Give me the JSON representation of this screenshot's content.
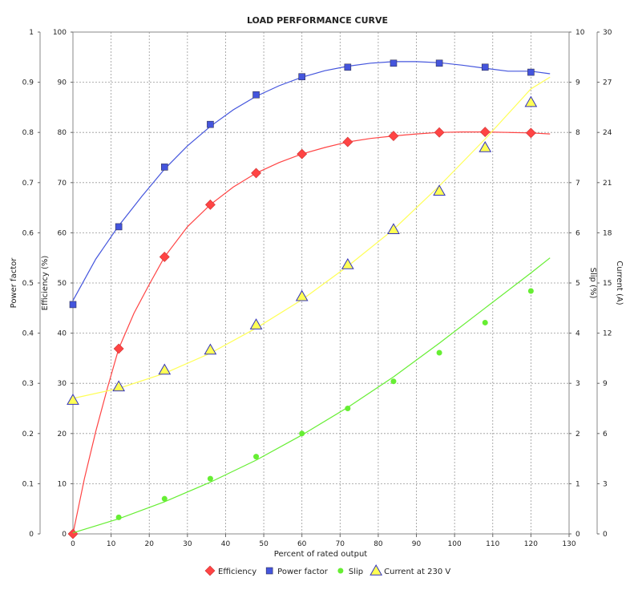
{
  "chart_data": {
    "type": "line",
    "title": "LOAD PERFORMANCE CURVE",
    "xlabel": "Percent of rated output",
    "x_ticks": [
      "0",
      "10",
      "20",
      "30",
      "40",
      "50",
      "60",
      "70",
      "80",
      "90",
      "100",
      "110",
      "120",
      "130"
    ],
    "xlim": [
      0,
      130
    ],
    "axes": [
      {
        "label": "Power factor",
        "position": "left-outer",
        "ylim": [
          0,
          1
        ],
        "ticks": [
          "0",
          "0.1",
          "0.2",
          "0.3",
          "0.4",
          "0.5",
          "0.6",
          "0.7",
          "0.8",
          "0.9",
          "1"
        ]
      },
      {
        "label": "Efficiency (%)",
        "position": "left-inner",
        "ylim": [
          0,
          100
        ],
        "ticks": [
          "0",
          "10",
          "20",
          "30",
          "40",
          "50",
          "60",
          "70",
          "80",
          "90",
          "100"
        ]
      },
      {
        "label": "Slip (%)",
        "position": "right-inner",
        "ylim": [
          0,
          10
        ],
        "ticks": [
          "0",
          "1",
          "2",
          "3",
          "4",
          "5",
          "6",
          "7",
          "8",
          "9",
          "10"
        ]
      },
      {
        "label": "Current (A)",
        "position": "right-outer",
        "ylim": [
          0,
          30
        ],
        "ticks": [
          "0",
          "3",
          "6",
          "9",
          "12",
          "15",
          "18",
          "21",
          "24",
          "27",
          "30"
        ]
      }
    ],
    "grid": true,
    "legend_position": "bottom",
    "series": [
      {
        "name": "Efficiency",
        "axis": "Efficiency (%)",
        "color": "#ff4444",
        "marker": "diamond",
        "x": [
          0,
          12,
          24,
          36,
          48,
          60,
          72,
          84,
          96,
          108,
          120
        ],
        "y": [
          0,
          36.9,
          55.2,
          65.6,
          71.9,
          75.7,
          78.1,
          79.3,
          80.0,
          80.1,
          79.9
        ],
        "curve": [
          [
            0,
            0
          ],
          [
            3,
            11
          ],
          [
            6,
            20.5
          ],
          [
            9,
            29
          ],
          [
            12,
            36.9
          ],
          [
            16,
            44
          ],
          [
            20,
            49.7
          ],
          [
            24,
            55.2
          ],
          [
            30,
            61.2
          ],
          [
            36,
            65.6
          ],
          [
            42,
            69.1
          ],
          [
            48,
            71.9
          ],
          [
            54,
            74
          ],
          [
            60,
            75.7
          ],
          [
            66,
            77
          ],
          [
            72,
            78.1
          ],
          [
            78,
            78.8
          ],
          [
            84,
            79.3
          ],
          [
            90,
            79.7
          ],
          [
            96,
            80.0
          ],
          [
            102,
            80.1
          ],
          [
            108,
            80.1
          ],
          [
            114,
            80.0
          ],
          [
            120,
            79.9
          ],
          [
            125,
            79.7
          ]
        ]
      },
      {
        "name": "Power factor",
        "axis": "Power factor",
        "color": "#4455dd",
        "marker": "square",
        "x": [
          0,
          12,
          24,
          36,
          48,
          60,
          72,
          84,
          96,
          108,
          120
        ],
        "y": [
          0.457,
          0.612,
          0.731,
          0.816,
          0.875,
          0.911,
          0.93,
          0.938,
          0.938,
          0.93,
          0.92
        ],
        "curve": [
          [
            0,
            0.465
          ],
          [
            6,
            0.548
          ],
          [
            12,
            0.614
          ],
          [
            18,
            0.672
          ],
          [
            24,
            0.727
          ],
          [
            30,
            0.773
          ],
          [
            36,
            0.812
          ],
          [
            42,
            0.845
          ],
          [
            48,
            0.872
          ],
          [
            54,
            0.893
          ],
          [
            60,
            0.91
          ],
          [
            66,
            0.923
          ],
          [
            72,
            0.932
          ],
          [
            78,
            0.938
          ],
          [
            84,
            0.941
          ],
          [
            90,
            0.941
          ],
          [
            96,
            0.939
          ],
          [
            102,
            0.934
          ],
          [
            108,
            0.928
          ],
          [
            114,
            0.922
          ],
          [
            120,
            0.922
          ],
          [
            125,
            0.917
          ]
        ]
      },
      {
        "name": "Slip",
        "axis": "Slip (%)",
        "color": "#66ee33",
        "marker": "circle",
        "x": [
          12,
          24,
          36,
          48,
          60,
          72,
          84,
          96,
          108,
          120
        ],
        "y": [
          0.33,
          0.7,
          1.1,
          1.54,
          2.0,
          2.5,
          3.04,
          3.61,
          4.21,
          4.84
        ],
        "curve": [
          [
            0,
            0.02
          ],
          [
            12,
            0.3
          ],
          [
            24,
            0.64
          ],
          [
            36,
            1.03
          ],
          [
            48,
            1.47
          ],
          [
            60,
            1.97
          ],
          [
            72,
            2.52
          ],
          [
            84,
            3.13
          ],
          [
            96,
            3.8
          ],
          [
            108,
            4.5
          ],
          [
            120,
            5.2
          ],
          [
            125,
            5.5
          ]
        ]
      },
      {
        "name": "Current at 230 V",
        "axis": "Current (A)",
        "color": "#ffff55",
        "marker": "triangle",
        "x": [
          0,
          12,
          24,
          36,
          48,
          60,
          72,
          84,
          96,
          108,
          120
        ],
        "y": [
          8.0,
          8.8,
          9.8,
          11.0,
          12.5,
          14.2,
          16.1,
          18.2,
          20.5,
          23.1,
          25.8
        ],
        "curve": [
          [
            0,
            8.1
          ],
          [
            12,
            8.7
          ],
          [
            24,
            9.6
          ],
          [
            36,
            10.8
          ],
          [
            48,
            12.3
          ],
          [
            60,
            14.0
          ],
          [
            72,
            16.0
          ],
          [
            84,
            18.2
          ],
          [
            96,
            20.8
          ],
          [
            108,
            23.6
          ],
          [
            120,
            26.6
          ],
          [
            125,
            27.3
          ]
        ]
      }
    ]
  }
}
